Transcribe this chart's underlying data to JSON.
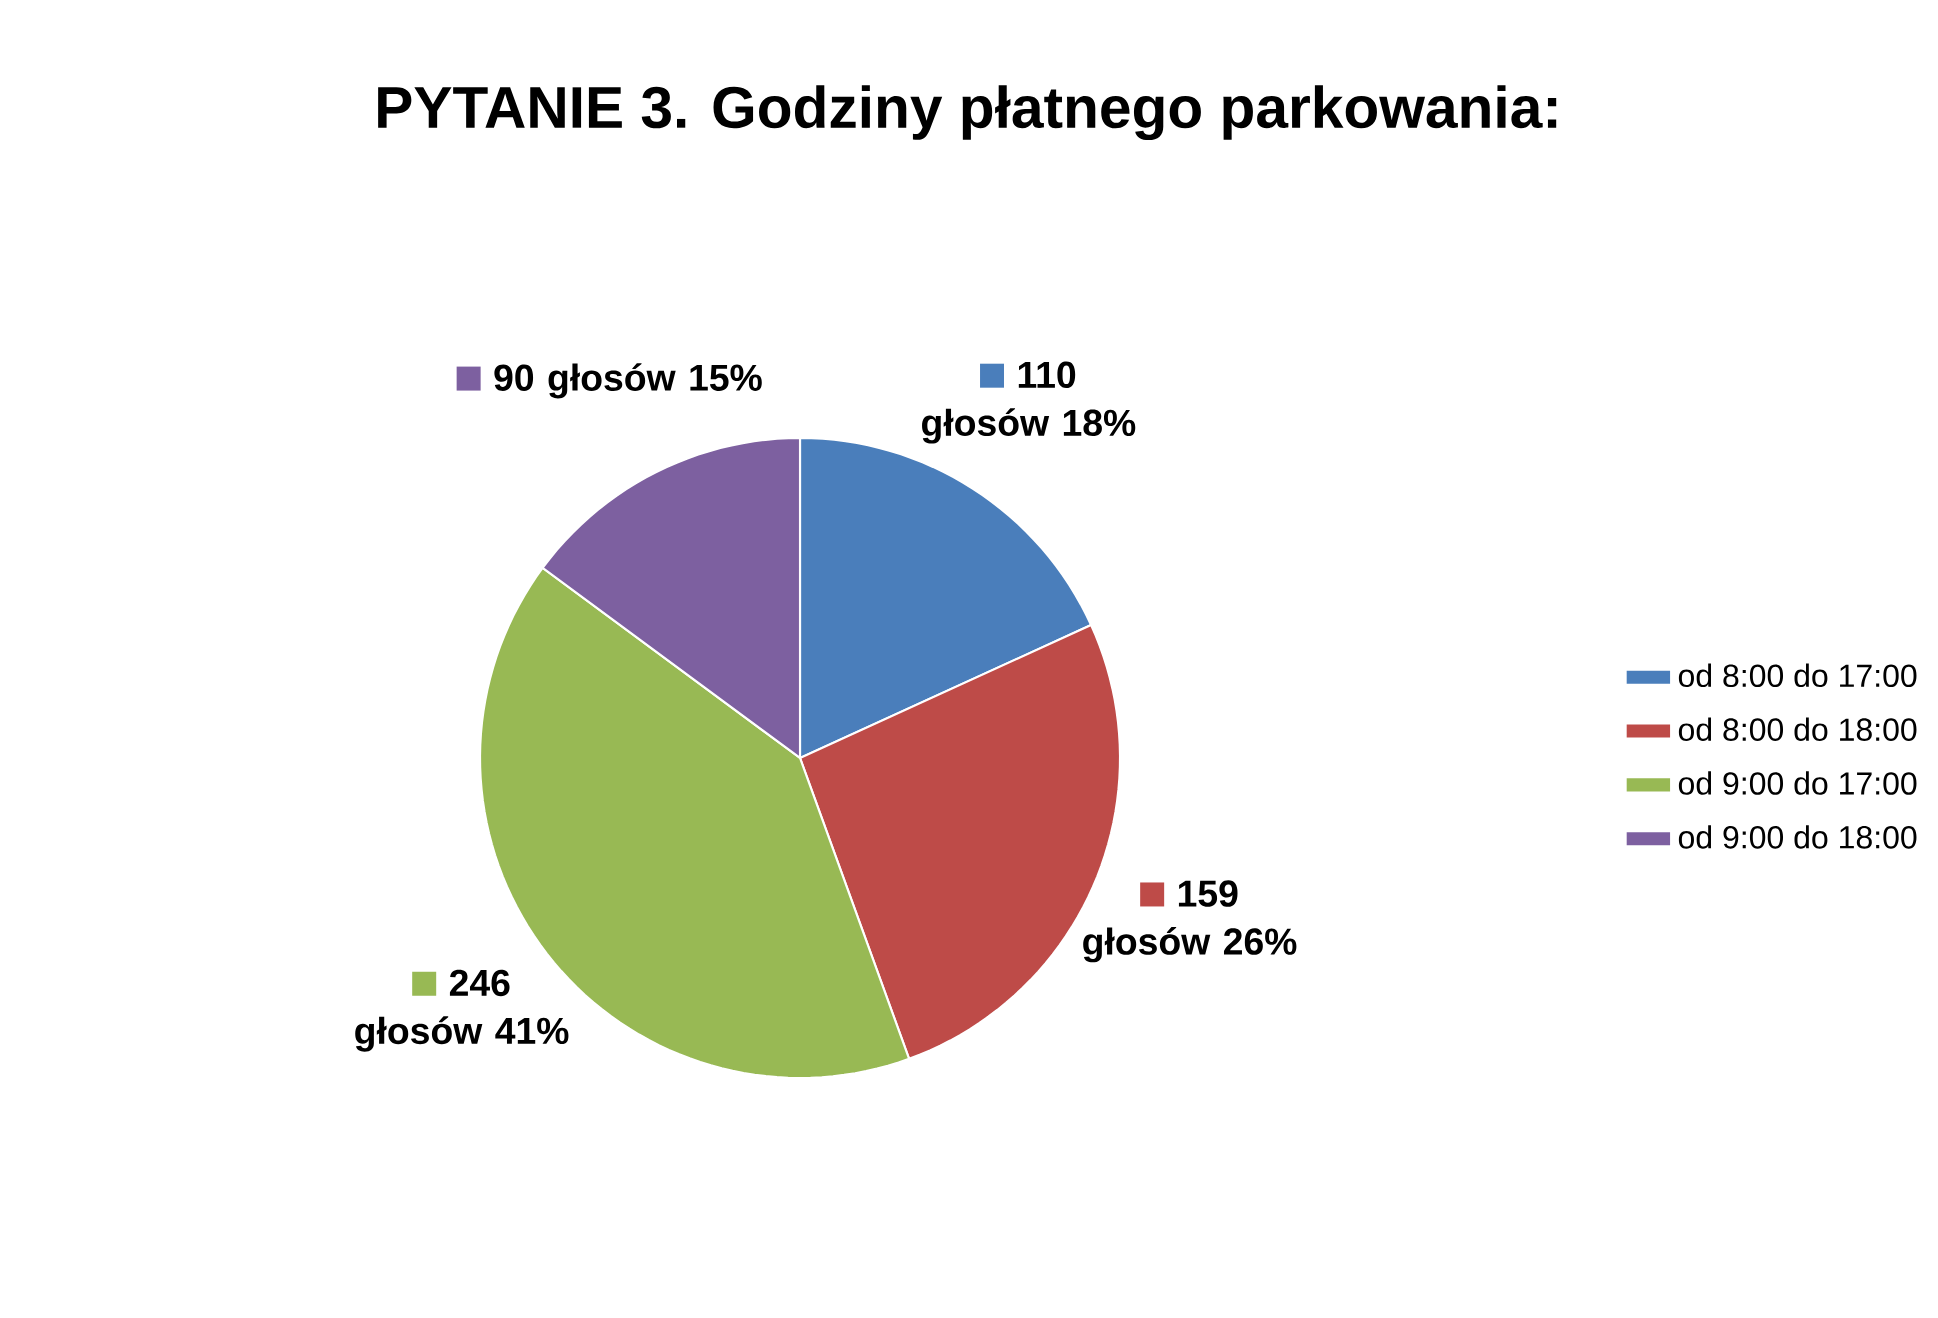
{
  "chart_data": {
    "type": "pie",
    "title": "PYTANIE 3. Godziny płatnego parkowania:",
    "categories": [
      "od 8:00 do 17:00",
      "od 8:00 do 18:00",
      "od 9:00 do 17:00",
      "od 9:00 do 18:00"
    ],
    "values": [
      110,
      159,
      246,
      90
    ],
    "colors": [
      "#4a7ebb",
      "#be4b48",
      "#98b954",
      "#7d60a0"
    ],
    "value_labels": [
      "110 głosów 18%",
      "159 głosów 26%",
      "246 głosów 41%",
      "90 głosów 15%"
    ],
    "legend": "right"
  }
}
